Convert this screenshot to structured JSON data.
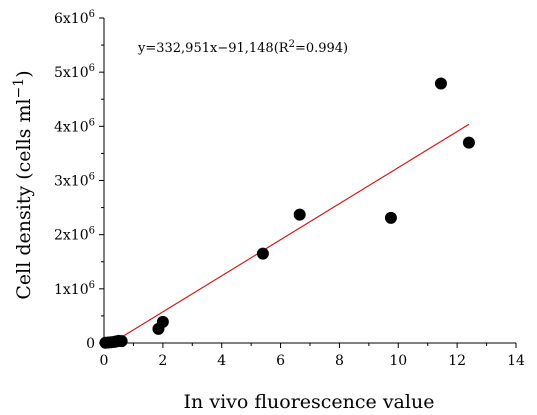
{
  "chart_data": {
    "type": "scatter",
    "xlabel": "In vivo fluorescence value",
    "ylabel": "Cell density (cells ml",
    "ylabel_sup": "−1",
    "ylabel_close": ")",
    "annotation": {
      "prefix": "y=332,951x−91,148(R",
      "sup": "2",
      "suffix": "=0.994)"
    },
    "xlim": [
      0,
      14
    ],
    "ylim": [
      0,
      6000000
    ],
    "x_ticks": [
      {
        "value": 0,
        "label": "0"
      },
      {
        "value": 2,
        "label": "2"
      },
      {
        "value": 4,
        "label": "4"
      },
      {
        "value": 6,
        "label": "6"
      },
      {
        "value": 8,
        "label": "8"
      },
      {
        "value": 10,
        "label": "10"
      },
      {
        "value": 12,
        "label": "12"
      },
      {
        "value": 14,
        "label": "14"
      }
    ],
    "y_ticks": [
      {
        "value": 0,
        "base": "0",
        "exp": ""
      },
      {
        "value": 1000000,
        "base": "1x10",
        "exp": "6"
      },
      {
        "value": 2000000,
        "base": "2x10",
        "exp": "6"
      },
      {
        "value": 3000000,
        "base": "3x10",
        "exp": "6"
      },
      {
        "value": 4000000,
        "base": "4x10",
        "exp": "6"
      },
      {
        "value": 5000000,
        "base": "5x10",
        "exp": "6"
      },
      {
        "value": 6000000,
        "base": "6x10",
        "exp": "6"
      }
    ],
    "points": [
      {
        "x": 0.05,
        "y": 5000
      },
      {
        "x": 0.15,
        "y": 10000
      },
      {
        "x": 0.25,
        "y": 15000
      },
      {
        "x": 0.35,
        "y": 20000
      },
      {
        "x": 0.42,
        "y": 30000
      },
      {
        "x": 0.5,
        "y": 40000
      },
      {
        "x": 0.6,
        "y": 35000
      },
      {
        "x": 1.85,
        "y": 260000
      },
      {
        "x": 2.0,
        "y": 390000
      },
      {
        "x": 5.4,
        "y": 1650000
      },
      {
        "x": 6.65,
        "y": 2370000
      },
      {
        "x": 9.75,
        "y": 2310000
      },
      {
        "x": 11.45,
        "y": 4790000
      },
      {
        "x": 12.4,
        "y": 3700000
      }
    ],
    "fit_line": {
      "slope": 332951,
      "intercept": -91148,
      "x_start": 0.27,
      "x_end": 12.4
    },
    "colors": {
      "points": "#000000",
      "fit_line": "#cc1b1b",
      "axis": "#000000"
    },
    "grid": false,
    "legend": "none"
  }
}
